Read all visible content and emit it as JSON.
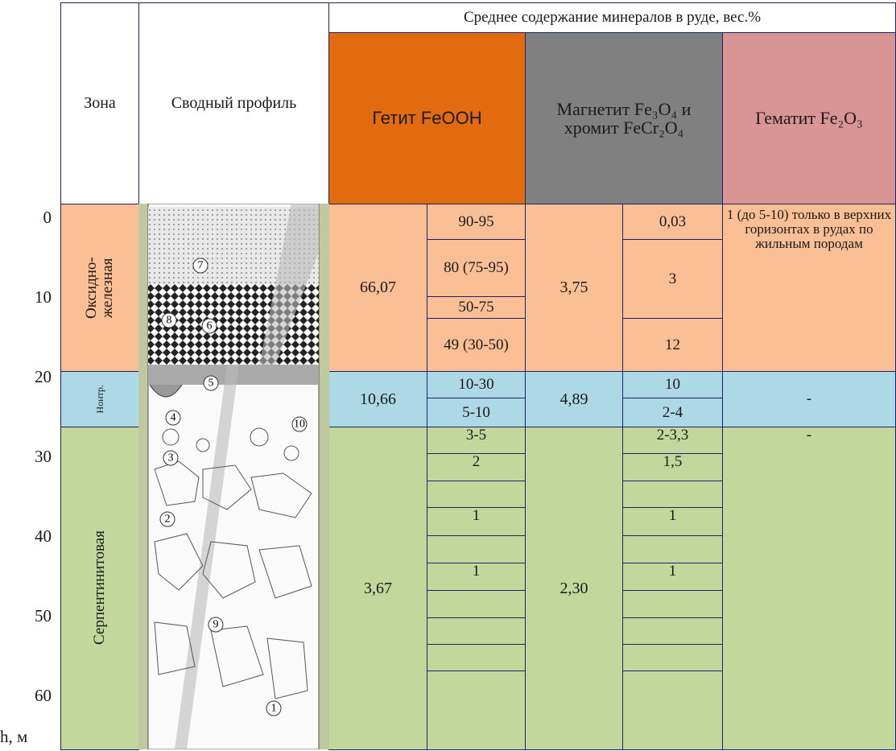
{
  "header": {
    "zone": "Зона",
    "profile": "Сводный профиль",
    "minerals_title": "Среднее содержание минералов в руде, вес.%",
    "goethite": "Гетит FeOOH",
    "magnetite": "Магнетит Fe₃O₄ и хромит FeCr₂O₄",
    "hematite": "Гематит Fe₂O₃"
  },
  "depth_labels": [
    "0",
    "10",
    "20",
    "30",
    "40",
    "50",
    "60"
  ],
  "depth_unit": "h, м",
  "zones": [
    {
      "name": "Оксидно-железная",
      "goethite_avg": "66,07",
      "goethite_rows": [
        "90-95",
        "80 (75-95)",
        "50-75",
        "49 (30-50)"
      ],
      "magnetite_avg": "3,75",
      "magnetite_rows": [
        "0,03",
        "3",
        "12"
      ],
      "hematite": "1 (до 5-10) только в верхних горизонтах в рудах по жильным породам"
    },
    {
      "name": "Нонтр.",
      "goethite_avg": "10,66",
      "goethite_rows": [
        "10-30",
        "5-10"
      ],
      "magnetite_avg": "4,89",
      "magnetite_rows": [
        "10",
        "2-4"
      ],
      "hematite": "-"
    },
    {
      "name": "Серпентинитовая",
      "goethite_avg": "3,67",
      "goethite_rows": [
        "3-5",
        "2",
        null,
        "1",
        null,
        "1",
        null,
        null,
        null,
        null
      ],
      "magnetite_avg": "2,30",
      "magnetite_rows": [
        "2-3,3",
        "1,5",
        null,
        "1",
        null,
        "1",
        null,
        null,
        null,
        null
      ],
      "hematite": "-"
    }
  ],
  "profile_markers": [
    "1",
    "2",
    "3",
    "4",
    "5",
    "6",
    "7",
    "8",
    "9",
    "10"
  ]
}
